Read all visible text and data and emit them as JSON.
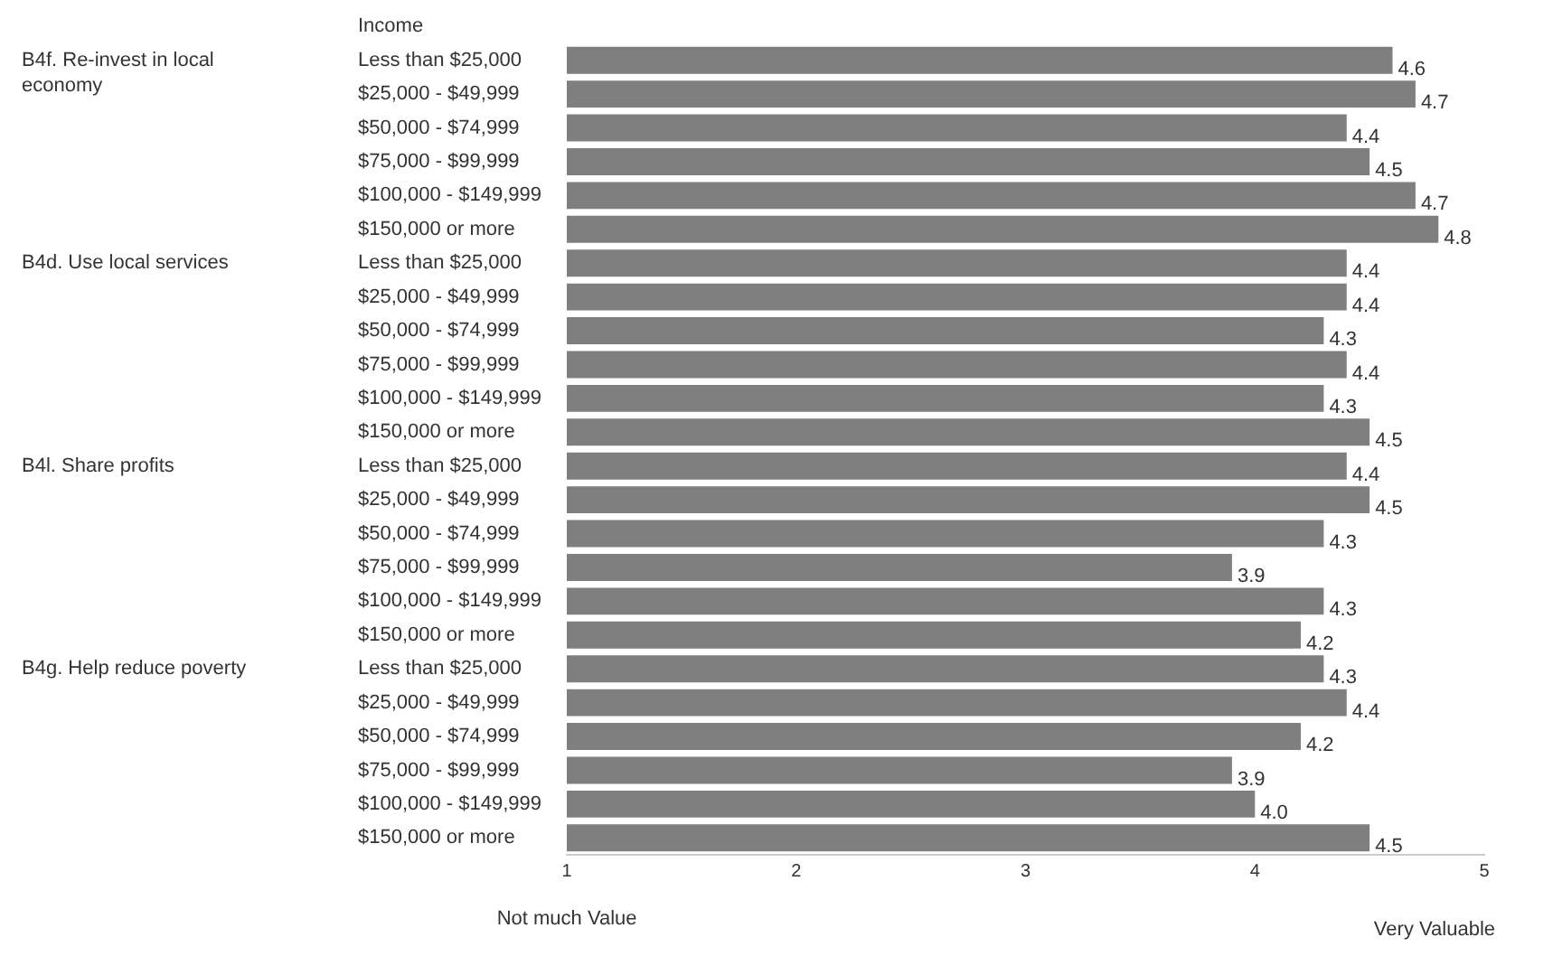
{
  "chart_data": {
    "type": "bar",
    "orientation": "horizontal",
    "ylabel": "Income",
    "categories": [
      "Less than $25,000",
      "$25,000 - $49,999",
      "$50,000 - $74,999",
      "$75,000 - $99,999",
      "$100,000 - $149,999",
      "$150,000 or more",
      "Less than $25,000",
      "$25,000 - $49,999",
      "$50,000 - $74,999",
      "$75,000 - $99,999",
      "$100,000 - $149,999",
      "$150,000 or more",
      "Less than $25,000",
      "$25,000 - $49,999",
      "$50,000 - $74,999",
      "$75,000 - $99,999",
      "$100,000 - $149,999",
      "$150,000 or more",
      "Less than $25,000",
      "$25,000 - $49,999",
      "$50,000 - $74,999",
      "$75,000 - $99,999",
      "$100,000 - $149,999",
      "$150,000 or more"
    ],
    "values": [
      4.6,
      4.7,
      4.4,
      4.5,
      4.7,
      4.8,
      4.4,
      4.4,
      4.3,
      4.4,
      4.3,
      4.5,
      4.4,
      4.5,
      4.3,
      3.9,
      4.3,
      4.2,
      4.3,
      4.4,
      4.2,
      3.9,
      4.0,
      4.5
    ],
    "value_labels": [
      "4.6",
      "4.7",
      "4.4",
      "4.5",
      "4.7",
      "4.8",
      "4.4",
      "4.4",
      "4.3",
      "4.4",
      "4.3",
      "4.5",
      "4.4",
      "4.5",
      "4.3",
      "3.9",
      "4.3",
      "4.2",
      "4.3",
      "4.4",
      "4.2",
      "3.9",
      "4.0",
      "4.5"
    ],
    "color": "#7f7f7f",
    "xlim": [
      1,
      5
    ],
    "xticks": [
      1,
      2,
      3,
      4,
      5
    ],
    "grid": false,
    "legend": false,
    "annotations": [
      "B4f. Re-invest in local economy",
      "B4d. Use local services",
      "B4l. Share profits",
      "B4g. Help reduce poverty",
      "Not much Value",
      "Very Valuable"
    ]
  }
}
